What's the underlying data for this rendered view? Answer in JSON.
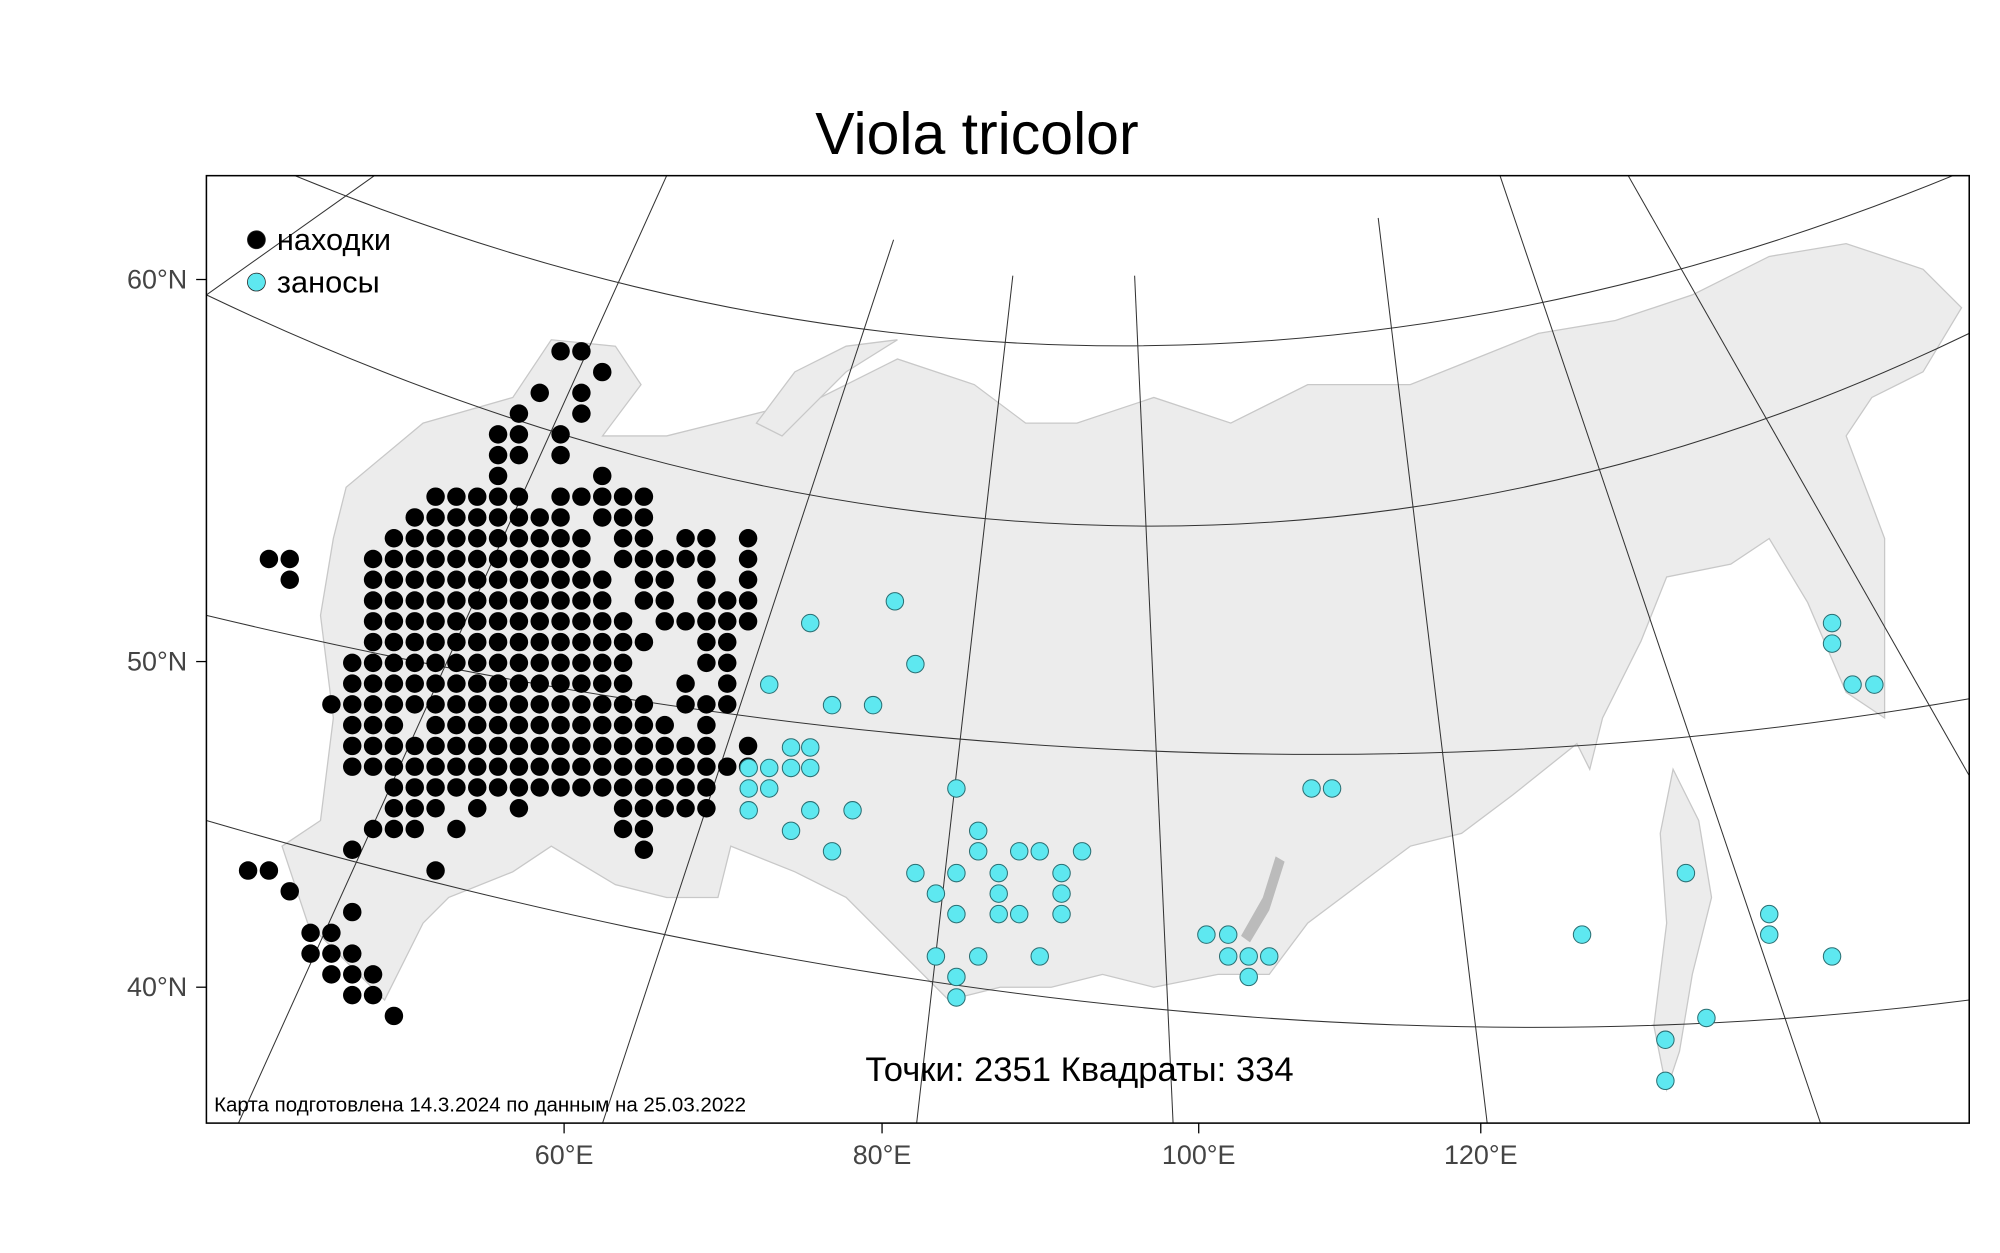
{
  "map": {
    "title": "Viola tricolor",
    "legend": [
      {
        "label": "находки",
        "color": "#000000"
      },
      {
        "label": "заносы",
        "color": "#5ee8f0"
      }
    ],
    "lat_labels": [
      "60°N",
      "50°N",
      "40°N"
    ],
    "lon_labels": [
      "60°E",
      "80°E",
      "100°E",
      "120°E"
    ],
    "stats": "Точки: 2351 Квадраты: 334",
    "caption": "Карта подготовлена 14.3.2024 по данным на 25.03.2022"
  }
}
